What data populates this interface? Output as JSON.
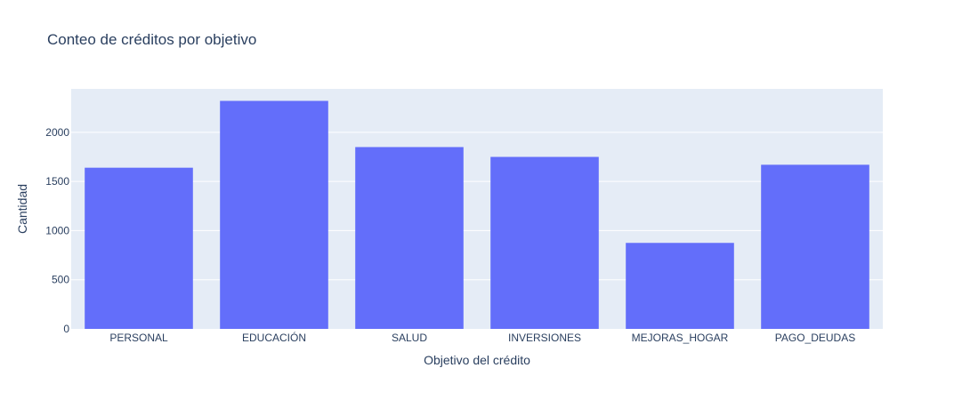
{
  "chart_data": {
    "type": "bar",
    "title": "Conteo de créditos por objetivo",
    "xlabel": "Objetivo del crédito",
    "ylabel": "Cantidad",
    "categories": [
      "PERSONAL",
      "EDUCACIÓN",
      "SALUD",
      "INVERSIONES",
      "MEJORAS_HOGAR",
      "PAGO_DEUDAS"
    ],
    "values": [
      1640,
      2320,
      1850,
      1750,
      875,
      1670
    ],
    "ylim": [
      0,
      2442
    ],
    "yticks": [
      0,
      500,
      1000,
      1500,
      2000
    ],
    "grid": true,
    "legend": "none",
    "colors": {
      "bar": "#636efa",
      "plot_background": "#e5ecf6",
      "grid": "#ffffff",
      "text": "#2a3f5f"
    }
  }
}
